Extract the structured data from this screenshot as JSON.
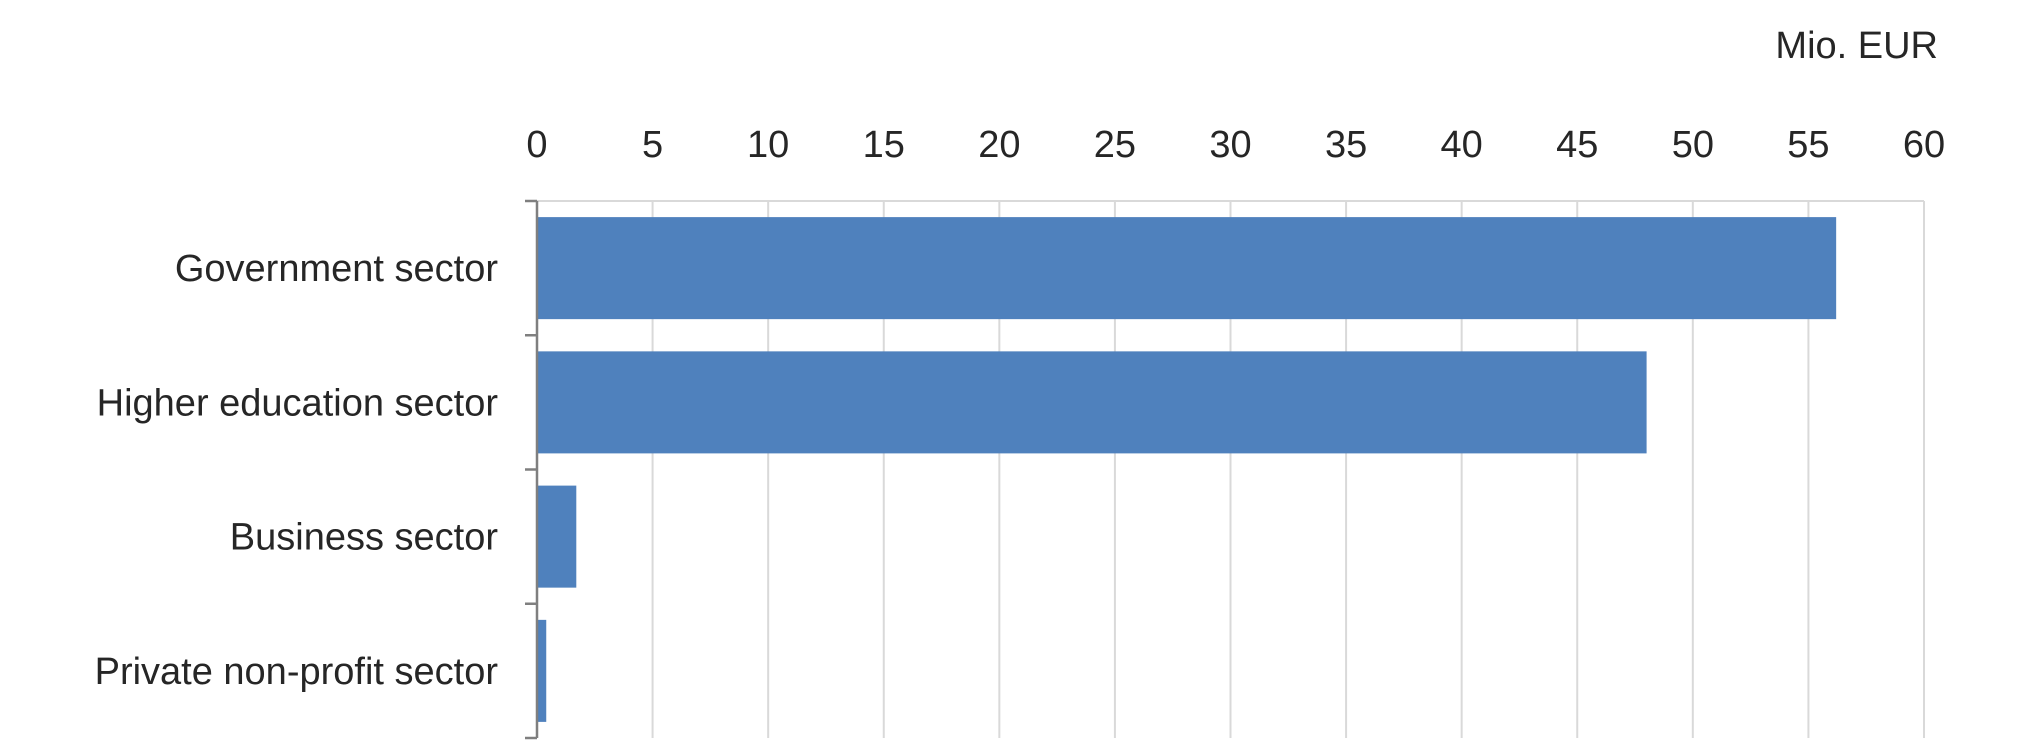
{
  "chart_data": {
    "type": "bar",
    "orientation": "horizontal",
    "unit_label": "Mio. EUR",
    "categories": [
      "Government sector",
      "Higher education sector",
      "Business sector",
      "Private non-profit sector"
    ],
    "values": [
      56.2,
      48.0,
      1.7,
      0.4
    ],
    "xlim": [
      0,
      60
    ],
    "x_ticks": [
      "0",
      "5",
      "10",
      "15",
      "20",
      "25",
      "30",
      "35",
      "40",
      "45",
      "50",
      "55",
      "60"
    ],
    "x_axis_position": "top",
    "grid": true,
    "legend": "none",
    "colors": {
      "bar": "#4f81bd",
      "grid": "#d9d9d9",
      "axis": "#7f7f7f"
    }
  }
}
